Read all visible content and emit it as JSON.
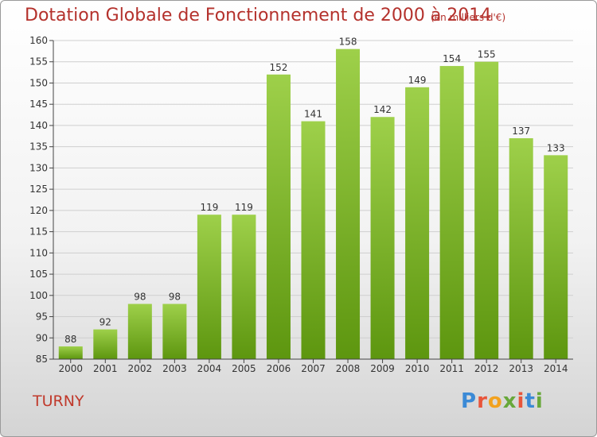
{
  "header": {
    "title": "Dotation Globale de Fonctionnement de 2000 à 2014",
    "unit": "(en milliers d'€)"
  },
  "footer": {
    "place": "TURNY",
    "brand": "Proxiti",
    "brand_colors": [
      "#3b8ad6",
      "#e8553a",
      "#f2a21f",
      "#68a83a",
      "#e8553a",
      "#3b8ad6",
      "#68a83a"
    ]
  },
  "colors": {
    "bar_top": "#9ed04a",
    "bar_bottom": "#5d960f",
    "title": "#b4312c",
    "axis": "#444444"
  },
  "chart_data": {
    "type": "bar",
    "title": "Dotation Globale de Fonctionnement de 2000 à 2014",
    "subtitle": "(en milliers d'€)",
    "categories": [
      "2000",
      "2001",
      "2002",
      "2003",
      "2004",
      "2005",
      "2006",
      "2007",
      "2008",
      "2009",
      "2010",
      "2011",
      "2012",
      "2013",
      "2014"
    ],
    "values": [
      88,
      92,
      98,
      98,
      119,
      119,
      152,
      141,
      158,
      142,
      149,
      154,
      155,
      137,
      133
    ],
    "ylim": [
      85,
      160
    ],
    "yticks": [
      85,
      90,
      95,
      100,
      105,
      110,
      115,
      120,
      125,
      130,
      135,
      140,
      145,
      150,
      155,
      160
    ],
    "grid": true,
    "data_labels": true
  }
}
